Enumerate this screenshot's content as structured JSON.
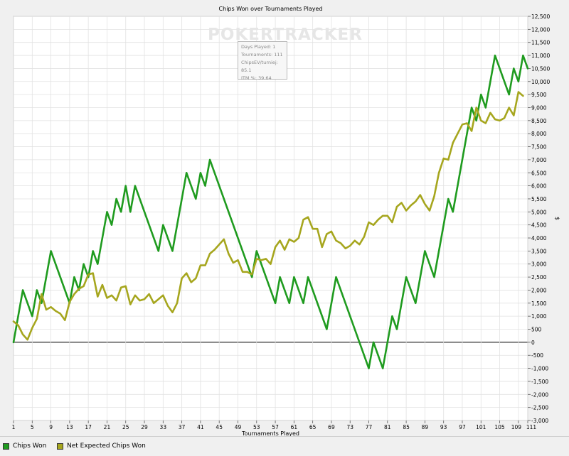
{
  "chart_data": {
    "type": "line",
    "title": "Chips Won over Tournaments Played",
    "xlabel": "Tournaments Played",
    "ylabel": "$",
    "xlim": [
      1,
      111
    ],
    "ylim": [
      -3000,
      12500
    ],
    "x_ticks": [
      1,
      5,
      9,
      13,
      17,
      21,
      25,
      29,
      33,
      37,
      41,
      45,
      49,
      53,
      57,
      61,
      65,
      69,
      73,
      77,
      81,
      85,
      89,
      93,
      97,
      101,
      105,
      109,
      111
    ],
    "y_ticks": [
      -3000,
      -2500,
      -2000,
      -1500,
      -1000,
      -500,
      0,
      500,
      1000,
      1500,
      2000,
      2500,
      3000,
      3500,
      4000,
      4500,
      5000,
      5500,
      6000,
      6500,
      7000,
      7500,
      8000,
      8500,
      9000,
      9500,
      10000,
      10500,
      11000,
      11500,
      12000,
      12500
    ],
    "y_tick_labels": [
      "-3,000",
      "-2,500",
      "-2,000",
      "-1,500",
      "-1,000",
      "-500",
      "0",
      "500",
      "1,000",
      "1,500",
      "2,000",
      "2,500",
      "3,000",
      "3,500",
      "4,000",
      "4,500",
      "5,000",
      "5,500",
      "6,000",
      "6,500",
      "7,000",
      "7,500",
      "8,000",
      "8,500",
      "9,000",
      "9,500",
      "10,000",
      "10,500",
      "11,000",
      "11,500",
      "12,000",
      "12,500"
    ],
    "grid": true,
    "legend_position": "bottom-left",
    "series": [
      {
        "name": "Chips Won",
        "color": "#1f9b1f",
        "points": [
          [
            1,
            0
          ],
          [
            3,
            2000
          ],
          [
            5,
            1000
          ],
          [
            6,
            2000
          ],
          [
            7,
            1500
          ],
          [
            9,
            3500
          ],
          [
            13,
            1500
          ],
          [
            14,
            2500
          ],
          [
            15,
            2000
          ],
          [
            16,
            3000
          ],
          [
            17,
            2500
          ],
          [
            18,
            3500
          ],
          [
            19,
            3000
          ],
          [
            21,
            5000
          ],
          [
            22,
            4500
          ],
          [
            23,
            5500
          ],
          [
            24,
            5000
          ],
          [
            25,
            6000
          ],
          [
            26,
            5000
          ],
          [
            27,
            6000
          ],
          [
            32,
            3500
          ],
          [
            33,
            4500
          ],
          [
            35,
            3500
          ],
          [
            38,
            6500
          ],
          [
            40,
            5500
          ],
          [
            41,
            6500
          ],
          [
            42,
            6000
          ],
          [
            43,
            7000
          ],
          [
            52,
            2500
          ],
          [
            53,
            3500
          ],
          [
            57,
            1500
          ],
          [
            58,
            2500
          ],
          [
            60,
            1500
          ],
          [
            61,
            2500
          ],
          [
            63,
            1500
          ],
          [
            64,
            2500
          ],
          [
            68,
            500
          ],
          [
            70,
            2500
          ],
          [
            77,
            -1000
          ],
          [
            78,
            0
          ],
          [
            80,
            -1000
          ],
          [
            82,
            1000
          ],
          [
            83,
            500
          ],
          [
            85,
            2500
          ],
          [
            87,
            1500
          ],
          [
            89,
            3500
          ],
          [
            91,
            2500
          ],
          [
            94,
            5500
          ],
          [
            95,
            5000
          ],
          [
            99,
            9000
          ],
          [
            100,
            8500
          ],
          [
            101,
            9500
          ],
          [
            102,
            9000
          ],
          [
            104,
            11000
          ],
          [
            107,
            9500
          ],
          [
            108,
            10500
          ],
          [
            109,
            10000
          ],
          [
            110,
            11000
          ],
          [
            111,
            10500
          ]
        ]
      },
      {
        "name": "Net Expected Chips Won",
        "color": "#a6a61e",
        "points": [
          [
            1,
            800
          ],
          [
            2,
            650
          ],
          [
            3,
            300
          ],
          [
            4,
            100
          ],
          [
            5,
            550
          ],
          [
            6,
            900
          ],
          [
            7,
            1850
          ],
          [
            8,
            1250
          ],
          [
            9,
            1350
          ],
          [
            10,
            1200
          ],
          [
            11,
            1100
          ],
          [
            12,
            850
          ],
          [
            13,
            1550
          ],
          [
            14,
            1850
          ],
          [
            15,
            2050
          ],
          [
            16,
            2150
          ],
          [
            17,
            2600
          ],
          [
            18,
            2650
          ],
          [
            19,
            1750
          ],
          [
            20,
            2200
          ],
          [
            21,
            1700
          ],
          [
            22,
            1800
          ],
          [
            23,
            1600
          ],
          [
            24,
            2100
          ],
          [
            25,
            2150
          ],
          [
            26,
            1450
          ],
          [
            27,
            1800
          ],
          [
            28,
            1600
          ],
          [
            29,
            1650
          ],
          [
            30,
            1850
          ],
          [
            31,
            1500
          ],
          [
            32,
            1650
          ],
          [
            33,
            1800
          ],
          [
            34,
            1400
          ],
          [
            35,
            1150
          ],
          [
            36,
            1500
          ],
          [
            37,
            2450
          ],
          [
            38,
            2650
          ],
          [
            39,
            2300
          ],
          [
            40,
            2450
          ],
          [
            41,
            2950
          ],
          [
            42,
            2950
          ],
          [
            43,
            3400
          ],
          [
            44,
            3550
          ],
          [
            45,
            3750
          ],
          [
            46,
            3950
          ],
          [
            47,
            3400
          ],
          [
            48,
            3050
          ],
          [
            49,
            3150
          ],
          [
            50,
            2700
          ],
          [
            51,
            2700
          ],
          [
            52,
            2600
          ],
          [
            53,
            3200
          ],
          [
            54,
            3150
          ],
          [
            55,
            3200
          ],
          [
            56,
            3000
          ],
          [
            57,
            3650
          ],
          [
            58,
            3900
          ],
          [
            59,
            3550
          ],
          [
            60,
            3950
          ],
          [
            61,
            3850
          ],
          [
            62,
            4000
          ],
          [
            63,
            4700
          ],
          [
            64,
            4800
          ],
          [
            65,
            4350
          ],
          [
            66,
            4350
          ],
          [
            67,
            3650
          ],
          [
            68,
            4150
          ],
          [
            69,
            4250
          ],
          [
            70,
            3900
          ],
          [
            71,
            3800
          ],
          [
            72,
            3600
          ],
          [
            73,
            3700
          ],
          [
            74,
            3900
          ],
          [
            75,
            3750
          ],
          [
            76,
            4050
          ],
          [
            77,
            4600
          ],
          [
            78,
            4500
          ],
          [
            79,
            4700
          ],
          [
            80,
            4850
          ],
          [
            81,
            4850
          ],
          [
            82,
            4600
          ],
          [
            83,
            5200
          ],
          [
            84,
            5350
          ],
          [
            85,
            5050
          ],
          [
            86,
            5250
          ],
          [
            87,
            5400
          ],
          [
            88,
            5650
          ],
          [
            89,
            5300
          ],
          [
            90,
            5050
          ],
          [
            91,
            5600
          ],
          [
            92,
            6500
          ],
          [
            93,
            7050
          ],
          [
            94,
            7000
          ],
          [
            95,
            7650
          ],
          [
            96,
            8000
          ],
          [
            97,
            8350
          ],
          [
            98,
            8400
          ],
          [
            99,
            8100
          ],
          [
            100,
            9000
          ],
          [
            101,
            8500
          ],
          [
            102,
            8400
          ],
          [
            103,
            8800
          ],
          [
            104,
            8550
          ],
          [
            105,
            8500
          ],
          [
            106,
            8600
          ],
          [
            107,
            9000
          ],
          [
            108,
            8700
          ],
          [
            109,
            9600
          ],
          [
            110,
            9450
          ]
        ]
      }
    ]
  },
  "watermark": "POKERTRACKER",
  "tooltip": {
    "line1": "Days Played: 1",
    "line2": "Tournaments: 111",
    "line3": "ChipsEV/turniej: 85.1",
    "line4": "ITM %: 39.64"
  },
  "legend": {
    "item1": "Chips Won",
    "item2": "Net Expected Chips Won"
  }
}
